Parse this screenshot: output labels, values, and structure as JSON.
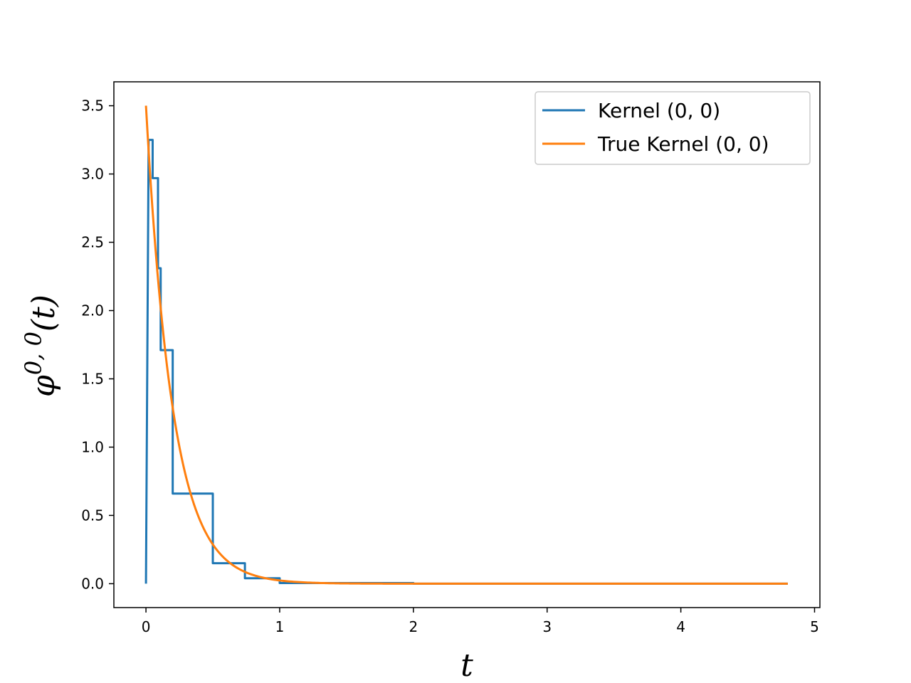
{
  "chart_data": {
    "type": "line",
    "xlabel": "t",
    "ylabel": "φ",
    "ylabel_superscript": "0, 0",
    "ylabel_suffix": "(t)",
    "xlim": [
      -0.24,
      5.04
    ],
    "ylim": [
      -0.175,
      3.675
    ],
    "xticks": [
      0,
      1,
      2,
      3,
      4,
      5
    ],
    "xtick_labels": [
      "0",
      "1",
      "2",
      "3",
      "4",
      "5"
    ],
    "yticks": [
      0.0,
      0.5,
      1.0,
      1.5,
      2.0,
      2.5,
      3.0,
      3.5
    ],
    "ytick_labels": [
      "0.0",
      "0.5",
      "1.0",
      "1.5",
      "2.0",
      "2.5",
      "3.0",
      "3.5"
    ],
    "grid": false,
    "legend_position": "top-right",
    "series": [
      {
        "name": "Kernel (0, 0)",
        "color": "#1f77b4",
        "style": "step",
        "x": [
          0,
          0.02,
          0.02,
          0.05,
          0.05,
          0.09,
          0.09,
          0.11,
          0.11,
          0.2,
          0.2,
          0.5,
          0.5,
          0.74,
          0.74,
          1.0,
          1.0,
          2.0,
          2.0,
          4.8
        ],
        "y": [
          0,
          3.25,
          3.25,
          3.25,
          2.97,
          2.97,
          2.31,
          2.31,
          1.71,
          1.71,
          0.66,
          0.66,
          0.15,
          0.15,
          0.04,
          0.04,
          0.005,
          0.005,
          0.0,
          0.0
        ]
      },
      {
        "name": "True Kernel (0, 0)",
        "color": "#ff7f0e",
        "style": "curve",
        "function": "3.5 * exp(-5 * t)",
        "x_range": [
          0,
          4.8
        ]
      }
    ]
  }
}
